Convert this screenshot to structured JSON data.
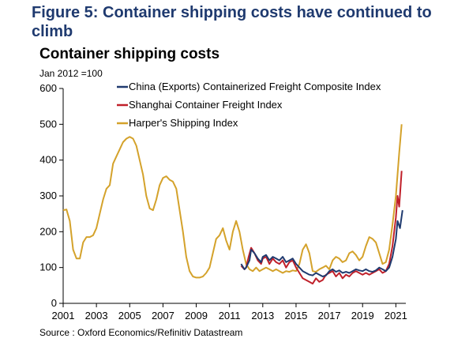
{
  "figure": {
    "title": "Figure 5: Container shipping costs have continued to climb",
    "source": "Source : Oxford Economics/Refinitiv Datastream"
  },
  "chart_data": {
    "type": "line",
    "title": "Container shipping costs",
    "ylabel": "Jan 2012 =100",
    "xlabel": "",
    "xlim": [
      2001,
      2021.6
    ],
    "ylim": [
      0,
      600
    ],
    "x_ticks": [
      2001,
      2003,
      2005,
      2007,
      2009,
      2011,
      2013,
      2015,
      2017,
      2019,
      2021
    ],
    "y_ticks": [
      0,
      100,
      200,
      300,
      400,
      500,
      600
    ],
    "grid": false,
    "legend_position": "top-right",
    "series": [
      {
        "name": "China (Exports) Containerized Freight Composite Index",
        "color": "#1f3a6f",
        "points": [
          [
            2011.7,
            110
          ],
          [
            2011.9,
            95
          ],
          [
            2012.0,
            100
          ],
          [
            2012.2,
            120
          ],
          [
            2012.3,
            150
          ],
          [
            2012.5,
            140
          ],
          [
            2012.7,
            125
          ],
          [
            2012.9,
            115
          ],
          [
            2013.0,
            130
          ],
          [
            2013.2,
            135
          ],
          [
            2013.4,
            120
          ],
          [
            2013.6,
            130
          ],
          [
            2013.8,
            125
          ],
          [
            2014.0,
            120
          ],
          [
            2014.2,
            130
          ],
          [
            2014.4,
            115
          ],
          [
            2014.6,
            120
          ],
          [
            2014.8,
            125
          ],
          [
            2015.0,
            110
          ],
          [
            2015.2,
            100
          ],
          [
            2015.4,
            90
          ],
          [
            2015.6,
            85
          ],
          [
            2015.8,
            80
          ],
          [
            2016.0,
            78
          ],
          [
            2016.2,
            85
          ],
          [
            2016.4,
            80
          ],
          [
            2016.6,
            75
          ],
          [
            2016.8,
            78
          ],
          [
            2017.0,
            90
          ],
          [
            2017.2,
            95
          ],
          [
            2017.4,
            88
          ],
          [
            2017.6,
            92
          ],
          [
            2017.8,
            85
          ],
          [
            2018.0,
            88
          ],
          [
            2018.2,
            85
          ],
          [
            2018.4,
            90
          ],
          [
            2018.6,
            95
          ],
          [
            2018.8,
            92
          ],
          [
            2019.0,
            90
          ],
          [
            2019.2,
            95
          ],
          [
            2019.4,
            90
          ],
          [
            2019.6,
            88
          ],
          [
            2019.8,
            92
          ],
          [
            2020.0,
            100
          ],
          [
            2020.2,
            95
          ],
          [
            2020.4,
            90
          ],
          [
            2020.6,
            100
          ],
          [
            2020.8,
            130
          ],
          [
            2021.0,
            180
          ],
          [
            2021.1,
            230
          ],
          [
            2021.25,
            210
          ],
          [
            2021.4,
            260
          ]
        ]
      },
      {
        "name": "Shanghai Container Freight Index",
        "color": "#c0202a",
        "points": [
          [
            2011.7,
            105
          ],
          [
            2011.9,
            95
          ],
          [
            2012.0,
            100
          ],
          [
            2012.15,
            130
          ],
          [
            2012.3,
            155
          ],
          [
            2012.5,
            140
          ],
          [
            2012.7,
            120
          ],
          [
            2012.9,
            110
          ],
          [
            2013.0,
            125
          ],
          [
            2013.2,
            130
          ],
          [
            2013.4,
            110
          ],
          [
            2013.6,
            125
          ],
          [
            2013.8,
            115
          ],
          [
            2014.0,
            110
          ],
          [
            2014.2,
            120
          ],
          [
            2014.4,
            100
          ],
          [
            2014.6,
            115
          ],
          [
            2014.8,
            120
          ],
          [
            2015.0,
            100
          ],
          [
            2015.2,
            85
          ],
          [
            2015.4,
            70
          ],
          [
            2015.6,
            65
          ],
          [
            2015.8,
            60
          ],
          [
            2016.0,
            55
          ],
          [
            2016.2,
            70
          ],
          [
            2016.4,
            60
          ],
          [
            2016.6,
            65
          ],
          [
            2016.8,
            80
          ],
          [
            2017.0,
            85
          ],
          [
            2017.2,
            90
          ],
          [
            2017.4,
            75
          ],
          [
            2017.6,
            85
          ],
          [
            2017.8,
            70
          ],
          [
            2018.0,
            80
          ],
          [
            2018.2,
            75
          ],
          [
            2018.4,
            85
          ],
          [
            2018.6,
            90
          ],
          [
            2018.8,
            85
          ],
          [
            2019.0,
            80
          ],
          [
            2019.2,
            85
          ],
          [
            2019.4,
            80
          ],
          [
            2019.6,
            85
          ],
          [
            2019.8,
            90
          ],
          [
            2020.0,
            95
          ],
          [
            2020.2,
            85
          ],
          [
            2020.4,
            90
          ],
          [
            2020.6,
            110
          ],
          [
            2020.8,
            160
          ],
          [
            2021.0,
            240
          ],
          [
            2021.1,
            300
          ],
          [
            2021.2,
            270
          ],
          [
            2021.35,
            370
          ]
        ]
      },
      {
        "name": "Harper's Shipping Index",
        "color": "#d4a22b",
        "points": [
          [
            2001.0,
            260
          ],
          [
            2001.2,
            262
          ],
          [
            2001.4,
            230
          ],
          [
            2001.6,
            150
          ],
          [
            2001.8,
            125
          ],
          [
            2002.0,
            125
          ],
          [
            2002.2,
            170
          ],
          [
            2002.4,
            185
          ],
          [
            2002.6,
            185
          ],
          [
            2002.8,
            190
          ],
          [
            2003.0,
            210
          ],
          [
            2003.2,
            250
          ],
          [
            2003.4,
            290
          ],
          [
            2003.6,
            320
          ],
          [
            2003.8,
            330
          ],
          [
            2004.0,
            390
          ],
          [
            2004.2,
            410
          ],
          [
            2004.4,
            430
          ],
          [
            2004.6,
            450
          ],
          [
            2004.8,
            460
          ],
          [
            2005.0,
            465
          ],
          [
            2005.2,
            460
          ],
          [
            2005.4,
            440
          ],
          [
            2005.6,
            400
          ],
          [
            2005.8,
            360
          ],
          [
            2006.0,
            300
          ],
          [
            2006.2,
            265
          ],
          [
            2006.4,
            260
          ],
          [
            2006.6,
            290
          ],
          [
            2006.8,
            330
          ],
          [
            2007.0,
            350
          ],
          [
            2007.2,
            355
          ],
          [
            2007.4,
            345
          ],
          [
            2007.6,
            340
          ],
          [
            2007.8,
            320
          ],
          [
            2008.0,
            260
          ],
          [
            2008.2,
            200
          ],
          [
            2008.4,
            130
          ],
          [
            2008.6,
            90
          ],
          [
            2008.8,
            75
          ],
          [
            2009.0,
            72
          ],
          [
            2009.2,
            72
          ],
          [
            2009.4,
            75
          ],
          [
            2009.6,
            85
          ],
          [
            2009.8,
            100
          ],
          [
            2010.0,
            140
          ],
          [
            2010.2,
            180
          ],
          [
            2010.4,
            190
          ],
          [
            2010.6,
            210
          ],
          [
            2010.8,
            175
          ],
          [
            2011.0,
            150
          ],
          [
            2011.2,
            200
          ],
          [
            2011.4,
            230
          ],
          [
            2011.6,
            200
          ],
          [
            2011.8,
            150
          ],
          [
            2012.0,
            110
          ],
          [
            2012.2,
            95
          ],
          [
            2012.4,
            90
          ],
          [
            2012.6,
            100
          ],
          [
            2012.8,
            90
          ],
          [
            2013.0,
            95
          ],
          [
            2013.2,
            100
          ],
          [
            2013.4,
            95
          ],
          [
            2013.6,
            90
          ],
          [
            2013.8,
            95
          ],
          [
            2014.0,
            90
          ],
          [
            2014.2,
            85
          ],
          [
            2014.4,
            90
          ],
          [
            2014.6,
            88
          ],
          [
            2014.8,
            92
          ],
          [
            2015.0,
            90
          ],
          [
            2015.2,
            110
          ],
          [
            2015.4,
            150
          ],
          [
            2015.6,
            165
          ],
          [
            2015.8,
            140
          ],
          [
            2016.0,
            90
          ],
          [
            2016.2,
            88
          ],
          [
            2016.4,
            95
          ],
          [
            2016.6,
            100
          ],
          [
            2016.8,
            105
          ],
          [
            2017.0,
            95
          ],
          [
            2017.2,
            120
          ],
          [
            2017.4,
            130
          ],
          [
            2017.6,
            125
          ],
          [
            2017.8,
            115
          ],
          [
            2018.0,
            120
          ],
          [
            2018.2,
            140
          ],
          [
            2018.4,
            145
          ],
          [
            2018.6,
            135
          ],
          [
            2018.8,
            120
          ],
          [
            2019.0,
            130
          ],
          [
            2019.2,
            160
          ],
          [
            2019.4,
            185
          ],
          [
            2019.6,
            180
          ],
          [
            2019.8,
            170
          ],
          [
            2020.0,
            140
          ],
          [
            2020.2,
            110
          ],
          [
            2020.4,
            115
          ],
          [
            2020.6,
            150
          ],
          [
            2020.8,
            220
          ],
          [
            2021.0,
            300
          ],
          [
            2021.2,
            420
          ],
          [
            2021.35,
            500
          ]
        ]
      }
    ]
  }
}
